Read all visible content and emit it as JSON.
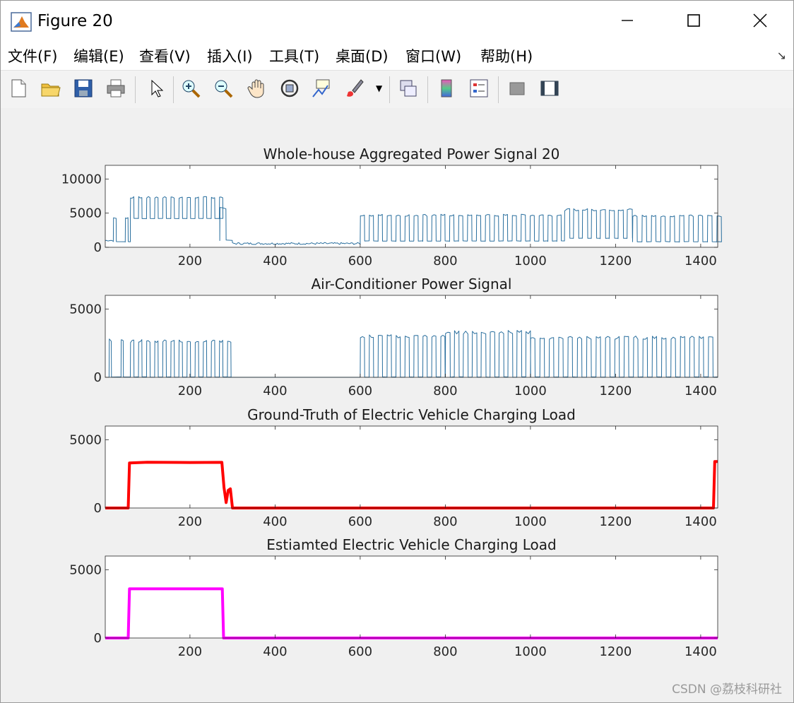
{
  "window": {
    "title": "Figure 20"
  },
  "menu": [
    "文件(F)",
    "编辑(E)",
    "查看(V)",
    "插入(I)",
    "工具(T)",
    "桌面(D)",
    "窗口(W)",
    "帮助(H)"
  ],
  "toolbar": [
    "new-figure-icon",
    "open-icon",
    "save-icon",
    "print-icon",
    "pointer-icon",
    "zoom-in-icon",
    "zoom-out-icon",
    "pan-icon",
    "rotate-icon",
    "data-cursor-icon",
    "brush-icon",
    "link-icon",
    "colorbar-icon",
    "legend-icon",
    "hide-plot-tools-icon",
    "show-plot-tools-icon"
  ],
  "colors": {
    "signal": "#2a6f9e",
    "ground_truth": "#ff0000",
    "estimated": "#ff00ff"
  },
  "watermark": "CSDN @荔枝科研社",
  "chart_data": [
    {
      "type": "line",
      "title": "Whole-house Aggregated Power Signal 20",
      "xlim": [
        1,
        1440
      ],
      "ylim": [
        0,
        12000
      ],
      "xticks": [
        200,
        400,
        600,
        800,
        1000,
        1200,
        1400
      ],
      "yticks": [
        0,
        5000,
        10000
      ],
      "series": [
        {
          "style": "thin",
          "color": "#2a6f9e",
          "regime": [
            {
              "x0": 1,
              "x1": 20,
              "hi": 1100,
              "lo": 900
            },
            {
              "x0": 20,
              "x1": 60,
              "hi": 4300,
              "lo": 800,
              "period": 28,
              "duty": 0.25
            },
            {
              "x0": 60,
              "x1": 270,
              "hi": 7300,
              "lo": 4200,
              "period": 19,
              "duty": 0.45
            },
            {
              "x0": 270,
              "x1": 300,
              "hi": 5800,
              "lo": 1000,
              "period": 30,
              "duty": 0.5
            },
            {
              "x0": 300,
              "x1": 600,
              "hi": 700,
              "lo": 400
            },
            {
              "x0": 600,
              "x1": 1080,
              "hi": 4700,
              "lo": 900,
              "period": 21,
              "duty": 0.5
            },
            {
              "x0": 1080,
              "x1": 1240,
              "hi": 5500,
              "lo": 1300,
              "period": 21,
              "duty": 0.6
            },
            {
              "x0": 1240,
              "x1": 1440,
              "hi": 4600,
              "lo": 800,
              "period": 22,
              "duty": 0.5
            }
          ]
        }
      ]
    },
    {
      "type": "line",
      "title": "Air-Conditioner Power Signal",
      "xlim": [
        1,
        1440
      ],
      "ylim": [
        0,
        6000
      ],
      "xticks": [
        200,
        400,
        600,
        800,
        1000,
        1200,
        1400
      ],
      "yticks": [
        0,
        5000
      ],
      "series": [
        {
          "style": "thin",
          "color": "#2a6f9e",
          "regime": [
            {
              "x0": 10,
              "x1": 60,
              "hi": 2700,
              "lo": 0,
              "period": 28,
              "duty": 0.2
            },
            {
              "x0": 60,
              "x1": 290,
              "hi": 2650,
              "lo": 0,
              "period": 19,
              "duty": 0.45
            },
            {
              "x0": 290,
              "x1": 600,
              "hi": 0,
              "lo": 0
            },
            {
              "x0": 600,
              "x1": 800,
              "hi": 3000,
              "lo": 0,
              "period": 21,
              "duty": 0.5
            },
            {
              "x0": 800,
              "x1": 1000,
              "hi": 3300,
              "lo": 0,
              "period": 21,
              "duty": 0.55
            },
            {
              "x0": 1000,
              "x1": 1440,
              "hi": 2900,
              "lo": 0,
              "period": 22,
              "duty": 0.5
            }
          ]
        }
      ]
    },
    {
      "type": "line",
      "title": "Ground-Truth of Electric Vehicle Charging Load",
      "xlim": [
        1,
        1440
      ],
      "ylim": [
        0,
        6000
      ],
      "xticks": [
        200,
        400,
        600,
        800,
        1000,
        1200,
        1400
      ],
      "yticks": [
        0,
        5000
      ],
      "series": [
        {
          "style": "thick",
          "color": "#ff0000",
          "points": [
            [
              1,
              0
            ],
            [
              55,
              0
            ],
            [
              58,
              3300
            ],
            [
              100,
              3350
            ],
            [
              200,
              3330
            ],
            [
              275,
              3340
            ],
            [
              280,
              1500
            ],
            [
              285,
              400
            ],
            [
              290,
              1300
            ],
            [
              295,
              1400
            ],
            [
              300,
              0
            ],
            [
              1430,
              0
            ],
            [
              1433,
              3400
            ],
            [
              1440,
              3400
            ]
          ]
        }
      ]
    },
    {
      "type": "line",
      "title": "Estiamted Electric Vehicle Charging Load",
      "xlim": [
        1,
        1440
      ],
      "ylim": [
        0,
        6000
      ],
      "xticks": [
        200,
        400,
        600,
        800,
        1000,
        1200,
        1400
      ],
      "yticks": [
        0,
        5000
      ],
      "series": [
        {
          "style": "thick",
          "color": "#ff00ff",
          "points": [
            [
              1,
              0
            ],
            [
              55,
              0
            ],
            [
              58,
              3600
            ],
            [
              276,
              3600
            ],
            [
              279,
              0
            ],
            [
              1440,
              0
            ]
          ]
        }
      ]
    }
  ]
}
